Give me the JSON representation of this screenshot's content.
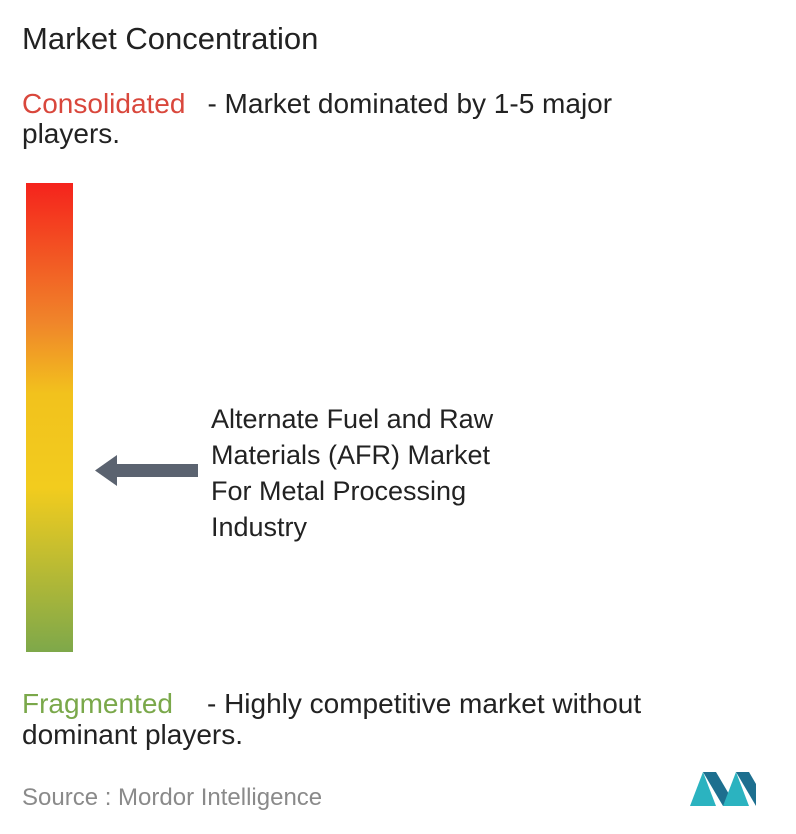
{
  "title": "Market Concentration",
  "consolidated": {
    "label": "Consolidated",
    "description_lines": [
      "- Market dominated by 1-5 major",
      "players."
    ]
  },
  "market": {
    "lines": [
      "Alternate Fuel and Raw",
      "Materials (AFR) Market",
      "For Metal Processing",
      "Industry"
    ]
  },
  "fragmented": {
    "label": "Fragmented",
    "description_lines": [
      "- Highly competitive market without",
      "dominant players."
    ]
  },
  "source": "Source : Mordor Intelligence"
}
